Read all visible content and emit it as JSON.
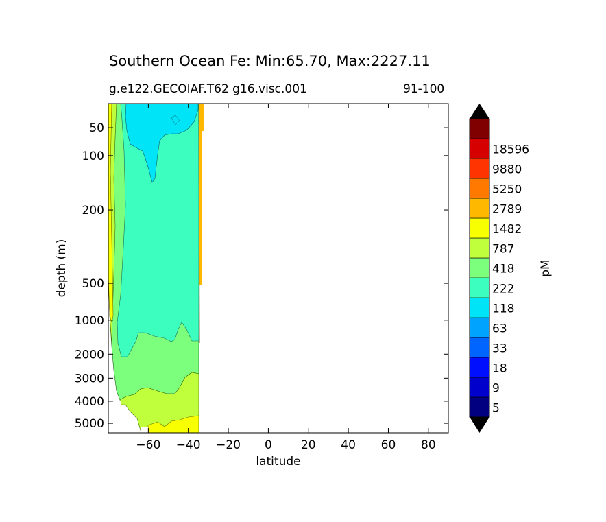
{
  "chart_data": {
    "type": "contour",
    "title": "Southern Ocean Fe: Min:65.70, Max:2227.11",
    "subtitle": "g.e122.GECOIAF.T62 g16.visc.001",
    "period": "91-100",
    "xlabel": "latitude",
    "ylabel": "depth (m)",
    "xlim": [
      -80,
      90
    ],
    "ylim": [
      5400,
      20
    ],
    "yscale": "log-like (depth)",
    "x_ticks": [
      -60,
      -40,
      -20,
      0,
      20,
      40,
      60,
      80
    ],
    "x_tick_labels": [
      "−60",
      "−40",
      "−20",
      "0",
      "20",
      "40",
      "60",
      "80"
    ],
    "y_ticks": [
      50,
      100,
      200,
      500,
      1000,
      2000,
      3000,
      4000,
      5000
    ],
    "y_tick_labels": [
      "50",
      "100",
      "200",
      "500",
      "1000",
      "2000",
      "3000",
      "4000",
      "5000"
    ],
    "colorbar": {
      "label": "pM",
      "levels": [
        5,
        9,
        18,
        33,
        63,
        118,
        222,
        418,
        787,
        1482,
        2789,
        5250,
        9880,
        18596
      ],
      "level_labels": [
        "5",
        "9",
        "18",
        "33",
        "63",
        "118",
        "222",
        "418",
        "787",
        "1482",
        "2789",
        "5250",
        "9880",
        "18596"
      ],
      "colors": [
        "#000080",
        "#0000cd",
        "#0010ff",
        "#0064ff",
        "#00a4ff",
        "#00e4f8",
        "#3cffbf",
        "#7cff7c",
        "#bfff3c",
        "#f8ff00",
        "#ffb800",
        "#ff7800",
        "#ff3400",
        "#d60000",
        "#800000"
      ],
      "extend": "both"
    },
    "data_extent_lat": [
      -80,
      -32
    ],
    "regions": [
      {
        "value_band": "63-118",
        "color": "#00e4f8",
        "location": "upper water column near -70 to -50, top ~100 m"
      },
      {
        "value_band": "118-222",
        "color": "#3cffbf",
        "location": "interior -70 to -35, 50 to 2000 m"
      },
      {
        "value_band": "222-418",
        "color": "#7cff7c",
        "location": "southern flank and deep water 1000-4000 m"
      },
      {
        "value_band": "418-787",
        "color": "#bfff3c",
        "location": "near Antarctic margin and below ~3500 m"
      },
      {
        "value_band": "787-1482",
        "color": "#f8ff00",
        "location": "coastal margin near -78 and bottom near -50"
      },
      {
        "value_band": "1482-2789",
        "color": "#ffb800",
        "location": "thin column at northern edge ~-32, upper 200 m"
      }
    ]
  }
}
